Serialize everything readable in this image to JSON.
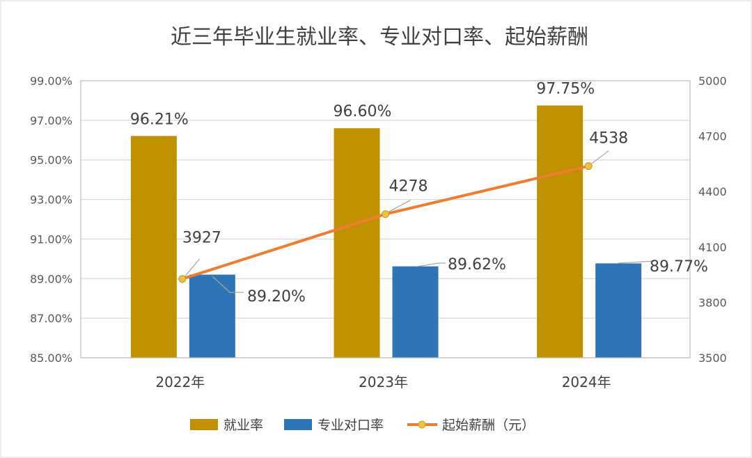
{
  "chart_data": {
    "type": "bar",
    "title": "近三年毕业生就业率、专业对口率、起始薪酬",
    "categories": [
      "2022年",
      "2023年",
      "2024年"
    ],
    "series": [
      {
        "name": "就业率",
        "kind": "bar",
        "axis": "left",
        "color": "#BF9000",
        "values": [
          96.21,
          96.6,
          97.75
        ],
        "labels": [
          "96.21%",
          "96.60%",
          "97.75%"
        ]
      },
      {
        "name": "专业对口率",
        "kind": "bar",
        "axis": "left",
        "color": "#2E75B6",
        "values": [
          89.2,
          89.62,
          89.77
        ],
        "labels": [
          "89.20%",
          "89.62%",
          "89.77%"
        ]
      },
      {
        "name": "起始薪酬（元）",
        "kind": "line",
        "axis": "right",
        "color": "#ED7D31",
        "marker_color": "#F2C13A",
        "values": [
          3927,
          4278,
          4538
        ],
        "labels": [
          "3927",
          "4278",
          "4538"
        ]
      }
    ],
    "left_axis": {
      "ylim": [
        85,
        99
      ],
      "ticks": [
        "99.00%",
        "97.00%",
        "95.00%",
        "93.00%",
        "91.00%",
        "89.00%",
        "87.00%",
        "85.00%"
      ]
    },
    "right_axis": {
      "ylim": [
        3500,
        5000
      ],
      "ticks": [
        "5000",
        "4700",
        "4400",
        "4100",
        "3800",
        "3500"
      ]
    },
    "grid": true,
    "legend_position": "bottom"
  }
}
